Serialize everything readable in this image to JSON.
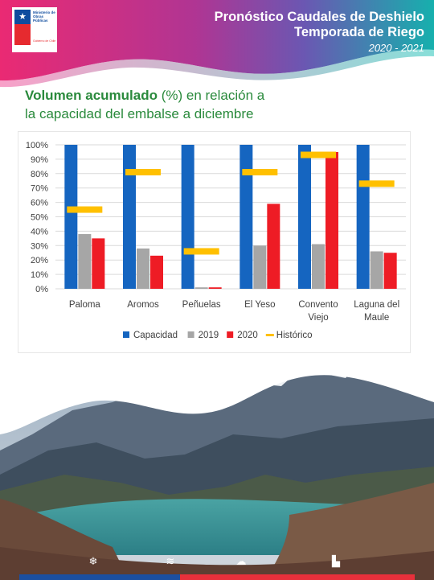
{
  "header": {
    "title_line1": "Pronóstico Caudales de Deshielo",
    "title_line2": "Temporada de Riego",
    "season": "2020 - 2021",
    "logo": {
      "line1": "Ministerio de",
      "line2": "Obras",
      "line3": "Públicas",
      "gov": "Gobierno de Chile"
    }
  },
  "section": {
    "title_bold": "Volumen acumulado",
    "title_rest1": " (%) en relación a",
    "title_line2": "la capacidad del embalse a diciembre"
  },
  "chart_data": {
    "type": "bar",
    "categories": [
      [
        "Paloma"
      ],
      [
        "Aromos"
      ],
      [
        "Peñuelas"
      ],
      [
        "El Yeso"
      ],
      [
        "Convento",
        "Viejo"
      ],
      [
        "Laguna del",
        "Maule"
      ]
    ],
    "y_ticks": [
      "100%",
      "90%",
      "80%",
      "70%",
      "60%",
      "50%",
      "40%",
      "30%",
      "20%",
      "10%",
      "0%"
    ],
    "ylim": [
      0,
      100
    ],
    "series": [
      {
        "name": "Capacidad",
        "color": "#1565c0",
        "values": [
          100,
          100,
          100,
          100,
          100,
          100
        ]
      },
      {
        "name": "2019",
        "color": "#a6a6a6",
        "values": [
          38,
          28,
          1,
          30,
          31,
          26
        ]
      },
      {
        "name": "2020",
        "color": "#ee1c25",
        "values": [
          35,
          23,
          1,
          59,
          95,
          25
        ]
      },
      {
        "name": "Histórico",
        "color": "#ffc000",
        "values": [
          55,
          81,
          26,
          81,
          93,
          73
        ],
        "style": "marker"
      }
    ],
    "legend_position": "bottom",
    "grid": true
  },
  "footer": {
    "icons": [
      "snowflake-icon",
      "waves-icon",
      "rain-cloud-icon",
      "reservoir-icon"
    ]
  },
  "colors": {
    "header_pink": "#e8216f",
    "header_purple": "#9b3aa0",
    "header_teal": "#12b0ae",
    "title_green": "#2a8a3c",
    "stripe_blue": "#1b4fa0",
    "stripe_red": "#e7303b"
  }
}
